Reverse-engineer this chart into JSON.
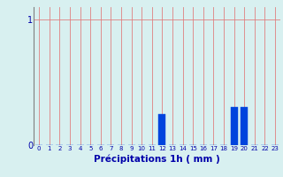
{
  "hours": [
    0,
    1,
    2,
    3,
    4,
    5,
    6,
    7,
    8,
    9,
    10,
    11,
    12,
    13,
    14,
    15,
    16,
    17,
    18,
    19,
    20,
    21,
    22,
    23
  ],
  "values": [
    0,
    0,
    0,
    0,
    0,
    0,
    0,
    0,
    0,
    0,
    0,
    0,
    0.25,
    0,
    0,
    0,
    0,
    0,
    0,
    0.3,
    0.3,
    0,
    0,
    0
  ],
  "bar_color": "#0044dd",
  "bar_edge_color": "#0044dd",
  "background_color": "#d8f0f0",
  "grid_color_v": "#c0a8a8",
  "grid_color_h": "#e08080",
  "axis_color": "#0000aa",
  "tick_color": "#0000aa",
  "xlabel": "Précipitations 1h ( mm )",
  "xlabel_fontsize": 7.5,
  "ylabel_ticks": [
    "0",
    "1"
  ],
  "yticks": [
    0,
    1
  ],
  "ylim": [
    0,
    1.1
  ],
  "xlim": [
    -0.5,
    23.5
  ]
}
